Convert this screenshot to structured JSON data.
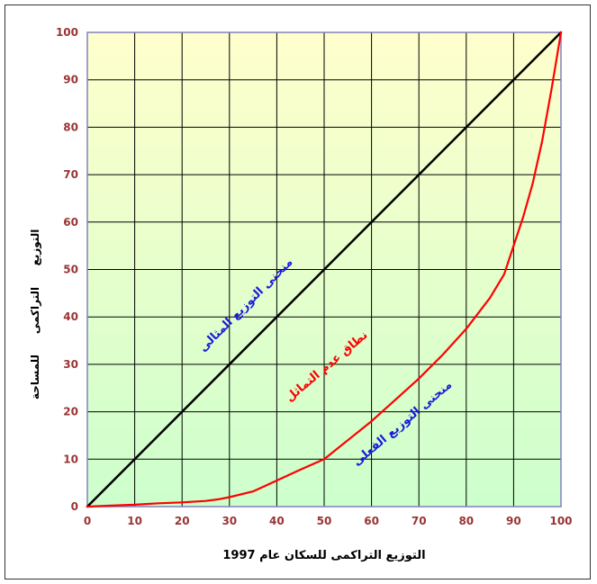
{
  "chart_data": {
    "type": "line",
    "title": "",
    "xlabel": "التوزيع التراكمى للسكان عام 1997",
    "ylabel_parts": [
      "التوزيع",
      "التراكمى",
      "للمساحة"
    ],
    "xlim": [
      0,
      100
    ],
    "ylim": [
      0,
      100
    ],
    "x_ticks": [
      "0",
      "10",
      "20",
      "30",
      "40",
      "50",
      "60",
      "70",
      "80",
      "90",
      "100"
    ],
    "y_ticks": [
      "0",
      "10",
      "20",
      "30",
      "40",
      "50",
      "60",
      "70",
      "80",
      "90",
      "100"
    ],
    "grid": true,
    "series": [
      {
        "name": "منحنى التوزيع المثالى",
        "color": "#000000",
        "points": [
          [
            0,
            0
          ],
          [
            100,
            100
          ]
        ]
      },
      {
        "name": "منحنى التوزيع الفعلى",
        "color": "#ff0000",
        "points": [
          [
            0,
            0
          ],
          [
            5,
            0.2
          ],
          [
            10,
            0.4
          ],
          [
            15,
            0.7
          ],
          [
            20,
            0.9
          ],
          [
            25,
            1.2
          ],
          [
            28,
            1.6
          ],
          [
            30,
            2.0
          ],
          [
            35,
            3.2
          ],
          [
            40,
            5.5
          ],
          [
            45,
            7.8
          ],
          [
            50,
            10.0
          ],
          [
            55,
            14.0
          ],
          [
            60,
            18.0
          ],
          [
            65,
            22.5
          ],
          [
            70,
            27.0
          ],
          [
            75,
            32.0
          ],
          [
            80,
            37.5
          ],
          [
            85,
            44.0
          ],
          [
            88,
            49.0
          ],
          [
            90,
            55.0
          ],
          [
            92,
            61.0
          ],
          [
            94,
            68.0
          ],
          [
            96,
            77.0
          ],
          [
            98,
            88.0
          ],
          [
            100,
            100
          ]
        ]
      }
    ],
    "annotations": [
      {
        "text": "منحنى التوزيع المثالى",
        "color": "#1a1adc",
        "x": 34,
        "y": 42,
        "angle": -45
      },
      {
        "text": "نطاق عدم التماثل",
        "color": "#ff0000",
        "x": 51,
        "y": 29,
        "angle": -40
      },
      {
        "text": "منحنى التوزيع الفعلى",
        "color": "#1a1adc",
        "x": 67,
        "y": 17,
        "angle": -40
      }
    ],
    "colors": {
      "background_top": "#ffffcc",
      "background_bottom": "#ccffcc",
      "grid": "#000000",
      "tick_label": "#993333",
      "plot_border": "#8080c0"
    }
  }
}
